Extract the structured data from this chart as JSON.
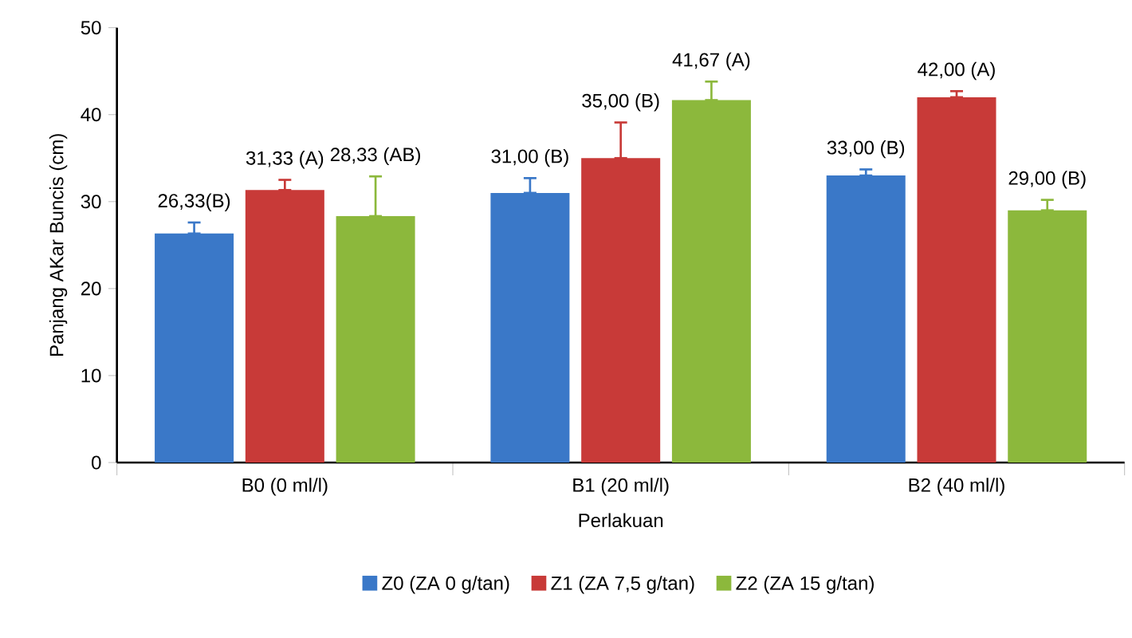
{
  "chart_data": {
    "type": "bar",
    "xlabel": "Perlakuan",
    "ylabel": "Panjang AKar Buncis (cm)",
    "categories": [
      "B0 (0 ml/l)",
      "B1 (20 ml/l)",
      "B2 (40 ml/l)"
    ],
    "series": [
      {
        "name": "Z0 (ZA 0 g/tan)",
        "color": "#3a78c8",
        "values": [
          26.33,
          31.0,
          33.0
        ],
        "errors": [
          [
            26.33,
            27.6
          ],
          [
            31.0,
            32.7
          ],
          [
            33.0,
            33.7
          ]
        ],
        "value_labels": [
          "26,33(B)",
          "31,00 (B)",
          "33,00 (B)"
        ]
      },
      {
        "name": "Z1 (ZA 7,5 g/tan)",
        "color": "#c83a38",
        "values": [
          31.33,
          35.0,
          42.0
        ],
        "errors": [
          [
            31.33,
            32.5
          ],
          [
            35.0,
            39.1
          ],
          [
            42.0,
            42.7
          ]
        ],
        "value_labels": [
          "31,33 (A)",
          "35,00 (B)",
          "42,00 (A)"
        ]
      },
      {
        "name": "Z2 (ZA 15 g/tan)",
        "color": "#8cb83c",
        "values": [
          28.33,
          41.67,
          29.0
        ],
        "errors": [
          [
            28.33,
            32.9
          ],
          [
            41.67,
            43.8
          ],
          [
            29.0,
            30.2
          ]
        ],
        "value_labels": [
          "28,33 (AB)",
          "41,67 (A)",
          "29,00 (B)"
        ]
      }
    ],
    "ylim": [
      0,
      50
    ],
    "yticks": [
      0,
      10,
      20,
      30,
      40,
      50
    ],
    "grid": false,
    "legend": "bottom"
  }
}
